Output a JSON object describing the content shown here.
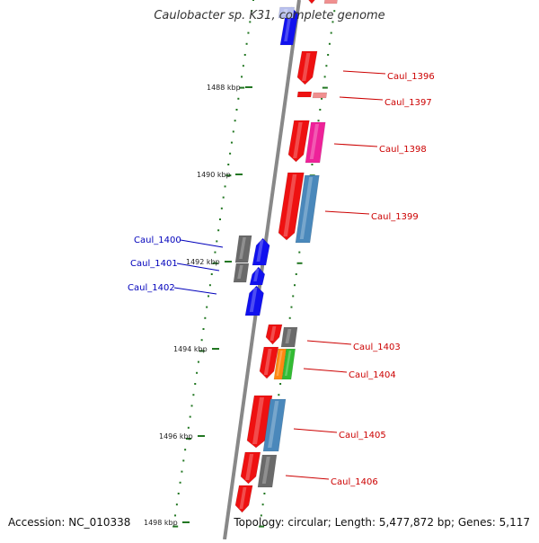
{
  "title": "Caulobacter sp. K31, complete genome",
  "accession": "Accession: NC_010338",
  "topology": "Topology: circular; Length: 5,477,872 bp; Genes: 5,117",
  "colors": {
    "axis": "#888888",
    "tick": "#227722",
    "label_right": "#cc0000",
    "label_left": "#0000bb",
    "red": "#ee1111",
    "blue": "#1111ee",
    "gray": "#6a6a6a",
    "pink": "#ee2299",
    "steel": "#4a88bb",
    "orange": "#ff8811",
    "green": "#33bb33",
    "pale_red": "#f09090",
    "pale_blue": "#b8c0ee"
  },
  "scale_labels": [
    "1488 kbp",
    "1490 kbp",
    "1492 kbp",
    "1494 kbp",
    "1496 kbp",
    "1498 kbp"
  ],
  "gene_labels_right": [
    "Caul_1396",
    "Caul_1397",
    "Caul_1398",
    "Caul_1399",
    "Caul_1403",
    "Caul_1404",
    "Caul_1405",
    "Caul_1406"
  ],
  "gene_labels_left": [
    "Caul_1400",
    "Caul_1401",
    "Caul_1402"
  ]
}
